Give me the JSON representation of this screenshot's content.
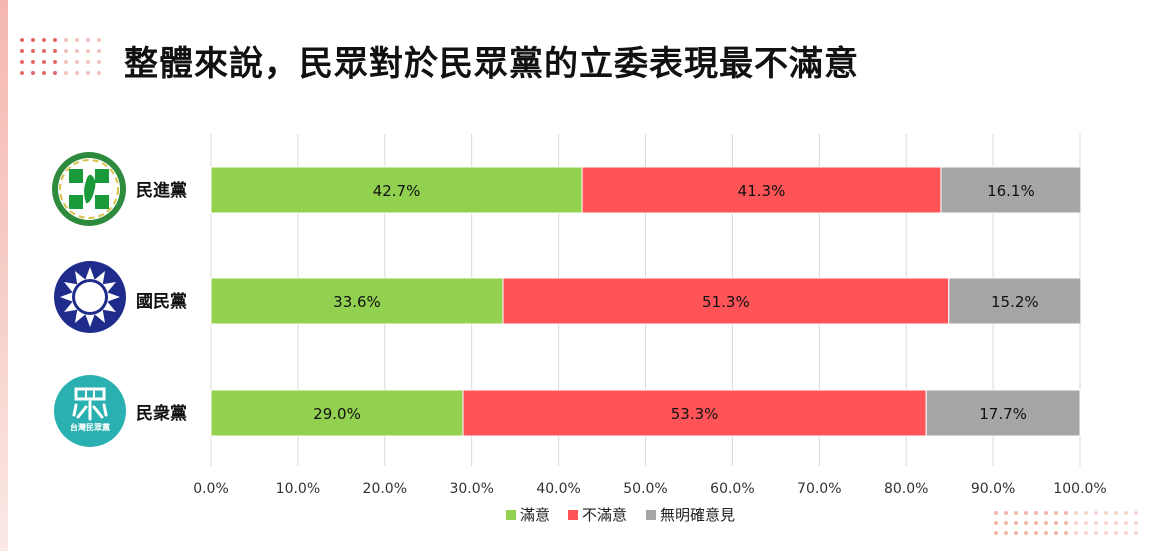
{
  "title": "整體來說，民眾對於民眾黨的立委表現最不滿意",
  "colors": {
    "satisfied": "#92d050",
    "dissatisfied": "#ff5457",
    "no_opinion": "#a6a6a6"
  },
  "chart_data": {
    "type": "bar",
    "orientation": "horizontal",
    "stacked": true,
    "categories": [
      "民進黨",
      "國民黨",
      "民衆黨"
    ],
    "series": [
      {
        "name": "滿意",
        "values": [
          42.7,
          33.6,
          29.0
        ]
      },
      {
        "name": "不滿意",
        "values": [
          41.3,
          51.3,
          53.3
        ]
      },
      {
        "name": "無明確意見",
        "values": [
          16.1,
          15.2,
          17.7
        ]
      }
    ],
    "value_labels": [
      [
        "42.7%",
        "41.3%",
        "16.1%"
      ],
      [
        "33.6%",
        "51.3%",
        "15.2%"
      ],
      [
        "29.0%",
        "53.3%",
        "17.7%"
      ]
    ],
    "xlim": [
      0,
      100
    ],
    "x_ticks": [
      "0.0%",
      "10.0%",
      "20.0%",
      "30.0%",
      "40.0%",
      "50.0%",
      "60.0%",
      "70.0%",
      "80.0%",
      "90.0%",
      "100.0%"
    ],
    "grid": true,
    "legend_position": "bottom",
    "logo_text": {
      "tpp": "台灣民眾黨"
    }
  }
}
